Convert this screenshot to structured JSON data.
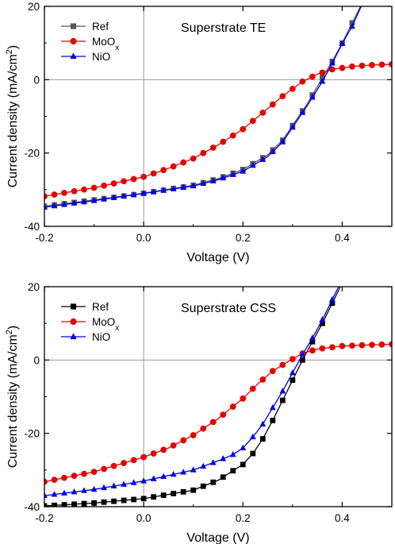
{
  "chart_data": [
    {
      "type": "line",
      "title": "Superstrate TE",
      "xlabel": "Voltage (V)",
      "ylabel_main": "Current density (mA/cm",
      "ylabel_sup": "2",
      "ylabel_end": ")",
      "xlim": [
        -0.2,
        0.5
      ],
      "ylim": [
        -40,
        20
      ],
      "xticks": [
        -0.2,
        0.0,
        0.2,
        0.4
      ],
      "xtick_labels": [
        "-0.2",
        "0.0",
        "0.2",
        "0.4"
      ],
      "yticks": [
        -40,
        -20,
        0,
        20
      ],
      "ytick_labels": [
        "-40",
        "-20",
        "0",
        "20"
      ],
      "zero_lines": true,
      "legend_position": "top-left",
      "series": [
        {
          "name": "Ref",
          "color": "#555555",
          "marker": "square",
          "x": [
            -0.2,
            -0.1,
            0.0,
            0.1,
            0.15,
            0.2,
            0.25,
            0.28,
            0.3,
            0.33,
            0.36,
            0.38,
            0.4,
            0.42,
            0.44,
            0.46
          ],
          "y": [
            -34.5,
            -32.8,
            -31.0,
            -28.8,
            -27.0,
            -24.5,
            -20.5,
            -16.5,
            -12.5,
            -6.5,
            0.5,
            5.0,
            10.0,
            15.5,
            20.8,
            26.0
          ]
        },
        {
          "name": "MoO",
          "name_sub": "x",
          "color": "#e60000",
          "marker": "circle",
          "x": [
            -0.2,
            -0.1,
            0.0,
            0.05,
            0.1,
            0.15,
            0.2,
            0.24,
            0.28,
            0.32,
            0.35,
            0.38,
            0.42,
            0.46,
            0.5
          ],
          "y": [
            -31.8,
            -29.5,
            -26.5,
            -24.2,
            -21.5,
            -17.8,
            -13.5,
            -9.0,
            -4.5,
            -0.5,
            1.5,
            2.8,
            3.6,
            4.0,
            4.2
          ]
        },
        {
          "name": "NiO",
          "color": "#0000e6",
          "marker": "triangle",
          "x": [
            -0.2,
            -0.1,
            0.0,
            0.1,
            0.15,
            0.2,
            0.25,
            0.28,
            0.3,
            0.33,
            0.36,
            0.38,
            0.4,
            0.42,
            0.44,
            0.46
          ],
          "y": [
            -34.8,
            -33.0,
            -31.0,
            -29.0,
            -27.3,
            -25.0,
            -21.0,
            -17.0,
            -13.0,
            -7.0,
            -0.5,
            4.5,
            9.8,
            14.5,
            20.5,
            26.0
          ]
        }
      ]
    },
    {
      "type": "line",
      "title": "Superstrate CSS",
      "xlabel": "Voltage (V)",
      "ylabel_main": "Current density (mA/cm",
      "ylabel_sup": "2",
      "ylabel_end": ")",
      "xlim": [
        -0.2,
        0.5
      ],
      "ylim": [
        -40,
        20
      ],
      "xticks": [
        -0.2,
        0.0,
        0.2,
        0.4
      ],
      "xtick_labels": [
        "-0.2",
        "0.0",
        "0.2",
        "0.4"
      ],
      "yticks": [
        -40,
        -20,
        0,
        20
      ],
      "ytick_labels": [
        "-40",
        "-20",
        "0",
        "20"
      ],
      "zero_lines": true,
      "legend_position": "top-left",
      "series": [
        {
          "name": "Ref",
          "color": "#000000",
          "marker": "square",
          "x": [
            -0.2,
            -0.1,
            0.0,
            0.1,
            0.15,
            0.18,
            0.2,
            0.22,
            0.24,
            0.26,
            0.28,
            0.3,
            0.32,
            0.34,
            0.36,
            0.38,
            0.4
          ],
          "y": [
            -39.8,
            -39.0,
            -37.8,
            -35.5,
            -32.8,
            -30.2,
            -28.5,
            -25.5,
            -21.5,
            -16.5,
            -11.0,
            -5.5,
            0.0,
            5.0,
            10.0,
            15.5,
            21.0
          ]
        },
        {
          "name": "MoO",
          "name_sub": "x",
          "color": "#e60000",
          "marker": "circle",
          "x": [
            -0.2,
            -0.1,
            0.0,
            0.05,
            0.1,
            0.15,
            0.2,
            0.23,
            0.26,
            0.29,
            0.32,
            0.35,
            0.4,
            0.45,
            0.5
          ],
          "y": [
            -33.2,
            -30.5,
            -26.5,
            -24.0,
            -20.5,
            -16.0,
            -10.5,
            -6.5,
            -3.0,
            -0.5,
            1.8,
            3.0,
            3.8,
            4.1,
            4.3
          ]
        },
        {
          "name": "NiO",
          "color": "#0000e6",
          "marker": "triangle",
          "x": [
            -0.2,
            -0.1,
            0.0,
            0.1,
            0.15,
            0.18,
            0.2,
            0.22,
            0.24,
            0.26,
            0.28,
            0.3,
            0.32,
            0.34,
            0.36,
            0.38,
            0.4
          ],
          "y": [
            -37.0,
            -35.3,
            -33.0,
            -30.0,
            -27.5,
            -25.8,
            -24.0,
            -21.0,
            -17.5,
            -13.0,
            -8.5,
            -3.5,
            1.5,
            6.0,
            11.0,
            16.5,
            22.0
          ]
        }
      ]
    }
  ]
}
